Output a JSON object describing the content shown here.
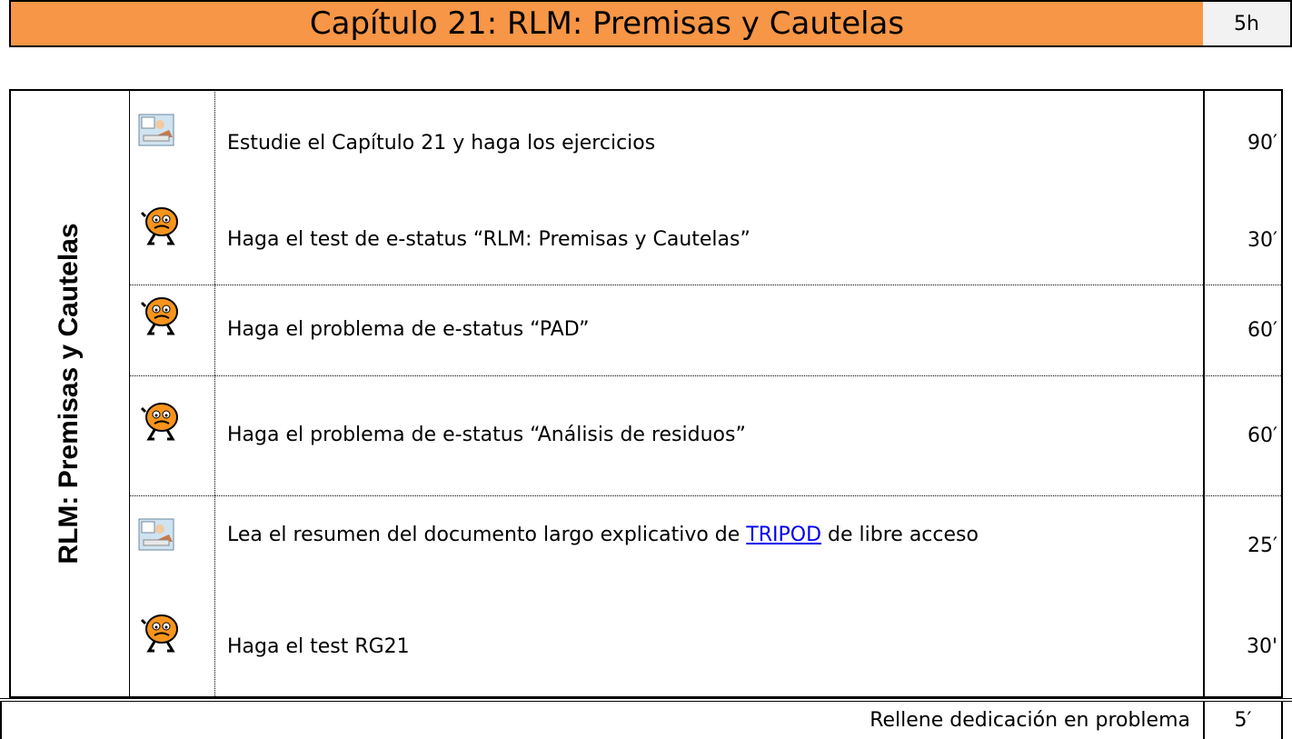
{
  "header": {
    "title": "Capítulo 21: RLM: Premisas y Cautelas",
    "total_time": "5h"
  },
  "section_label": "RLM: Premisas y Cautelas",
  "rows": [
    {
      "icon": "study",
      "text": "Estudie el Capítulo 21 y haga los ejercicios",
      "time": "90′"
    },
    {
      "icon": "test",
      "text": "Haga el test de e-status “RLM: Premisas y Cautelas”",
      "time": "30′"
    },
    {
      "icon": "test",
      "text": "Haga el problema de e-status “PAD”",
      "time": "60′"
    },
    {
      "icon": "test",
      "text": "Haga el problema de e-status “Análisis de residuos”",
      "time": "60′"
    },
    {
      "icon": "study",
      "text_before": "Lea el resumen del documento largo explicativo de ",
      "link": "TRIPOD",
      "text_after": " de libre acceso",
      "time": "25′"
    },
    {
      "icon": "test",
      "text": "Haga el test RG21",
      "time": "30'"
    }
  ],
  "footer": {
    "text": "Rellene dedicación en problema",
    "time": "5′"
  }
}
